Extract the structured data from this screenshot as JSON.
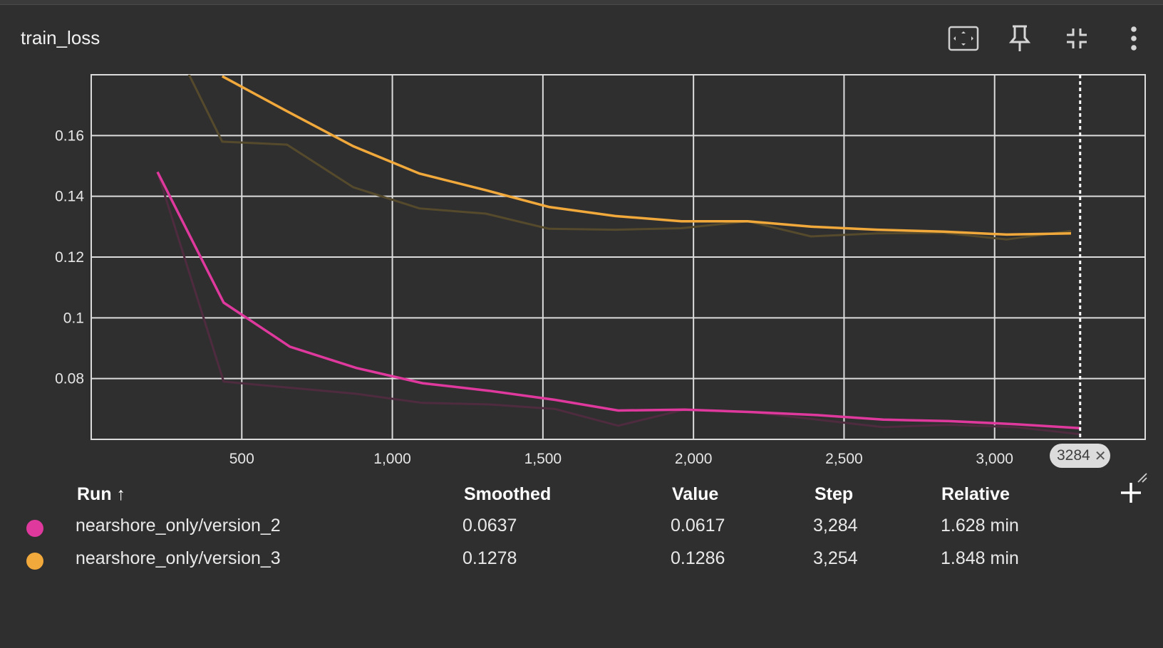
{
  "card": {
    "title": "train_loss"
  },
  "toolbar": {
    "fit_icon": "fit-domain-icon",
    "pin_icon": "pin-icon",
    "collapse_icon": "collapse-icon",
    "more_icon": "more-vert-icon"
  },
  "chart_data": {
    "type": "line",
    "xlabel": "",
    "ylabel": "",
    "xlim": [
      0,
      3500
    ],
    "ylim": [
      0.06,
      0.18
    ],
    "x_ticks": [
      500,
      1000,
      1500,
      2000,
      2500,
      3000
    ],
    "x_tick_labels": [
      "500",
      "1,000",
      "1,500",
      "2,000",
      "2,500",
      "3,000"
    ],
    "y_ticks": [
      0.08,
      0.1,
      0.12,
      0.14,
      0.16
    ],
    "y_tick_labels": [
      "0.08",
      "0.1",
      "0.12",
      "0.14",
      "0.16"
    ],
    "grid": true,
    "cursor_step": 3284,
    "cursor_label": "3284",
    "series": [
      {
        "name": "nearshore_only/version_2",
        "color": "#e0399e",
        "raw_color": "#4e2b3e",
        "smoothed": [
          [
            220,
            0.148
          ],
          [
            440,
            0.105
          ],
          [
            660,
            0.0905
          ],
          [
            880,
            0.0835
          ],
          [
            1100,
            0.0785
          ],
          [
            1320,
            0.076
          ],
          [
            1540,
            0.073
          ],
          [
            1750,
            0.0695
          ],
          [
            1970,
            0.0698
          ],
          [
            2190,
            0.069
          ],
          [
            2410,
            0.068
          ],
          [
            2630,
            0.0665
          ],
          [
            2850,
            0.066
          ],
          [
            3070,
            0.065
          ],
          [
            3284,
            0.0637
          ]
        ],
        "raw": [
          [
            220,
            0.148
          ],
          [
            440,
            0.079
          ],
          [
            660,
            0.077
          ],
          [
            880,
            0.075
          ],
          [
            1100,
            0.072
          ],
          [
            1320,
            0.0715
          ],
          [
            1540,
            0.07
          ],
          [
            1750,
            0.0645
          ],
          [
            1970,
            0.0698
          ],
          [
            2190,
            0.069
          ],
          [
            2410,
            0.0665
          ],
          [
            2630,
            0.064
          ],
          [
            2850,
            0.0648
          ],
          [
            3070,
            0.064
          ],
          [
            3284,
            0.0617
          ]
        ]
      },
      {
        "name": "nearshore_only/version_3",
        "color": "#f2a93b",
        "raw_color": "#564a2c",
        "smoothed": [
          [
            435,
            0.1795
          ],
          [
            650,
            0.168
          ],
          [
            870,
            0.1565
          ],
          [
            1090,
            0.1475
          ],
          [
            1310,
            0.142
          ],
          [
            1520,
            0.1365
          ],
          [
            1740,
            0.1335
          ],
          [
            1960,
            0.1318
          ],
          [
            2180,
            0.1318
          ],
          [
            2390,
            0.13
          ],
          [
            2610,
            0.129
          ],
          [
            2830,
            0.1284
          ],
          [
            3040,
            0.1274
          ],
          [
            3254,
            0.1278
          ]
        ],
        "raw": [
          [
            300,
            0.185
          ],
          [
            435,
            0.158
          ],
          [
            650,
            0.157
          ],
          [
            870,
            0.143
          ],
          [
            1090,
            0.136
          ],
          [
            1310,
            0.1343
          ],
          [
            1520,
            0.1293
          ],
          [
            1740,
            0.129
          ],
          [
            1960,
            0.1295
          ],
          [
            2180,
            0.1318
          ],
          [
            2390,
            0.1268
          ],
          [
            2610,
            0.1278
          ],
          [
            2830,
            0.128
          ],
          [
            3040,
            0.1258
          ],
          [
            3254,
            0.1286
          ]
        ]
      }
    ]
  },
  "table": {
    "headers": {
      "run": "Run ↑",
      "smoothed": "Smoothed",
      "value": "Value",
      "step": "Step",
      "relative": "Relative"
    },
    "rows": [
      {
        "color": "#e0399e",
        "run": "nearshore_only/version_2",
        "smoothed": "0.0637",
        "value": "0.0617",
        "step": "3,284",
        "relative": "1.628 min"
      },
      {
        "color": "#f2a93b",
        "run": "nearshore_only/version_3",
        "smoothed": "0.1278",
        "value": "0.1286",
        "step": "3,254",
        "relative": "1.848 min"
      }
    ]
  }
}
